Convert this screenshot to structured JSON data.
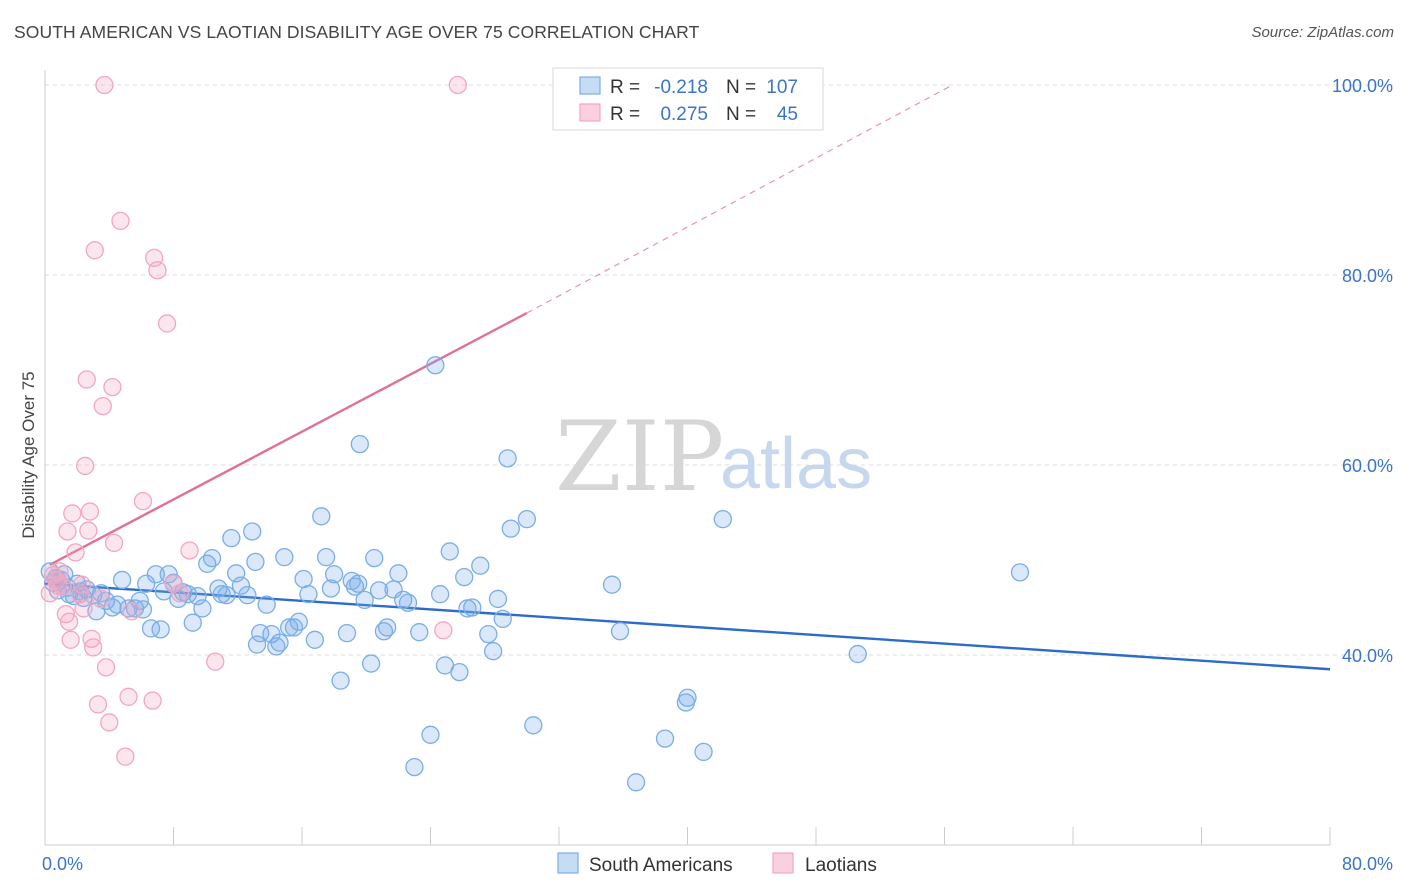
{
  "title": "SOUTH AMERICAN VS LAOTIAN DISABILITY AGE OVER 75 CORRELATION CHART",
  "source": "Source: ZipAtlas.com",
  "watermark": {
    "zip": "ZIP",
    "atlas": "atlas"
  },
  "chart_data": {
    "type": "scatter",
    "xlabel": "",
    "ylabel": "Disability Age Over 75",
    "xlim": [
      0,
      80
    ],
    "ylim": [
      20,
      101
    ],
    "x_tick_labels": [
      "0.0%",
      "80.0%"
    ],
    "y_ticks": [
      40,
      60,
      80,
      100
    ],
    "y_tick_labels": [
      "40.0%",
      "60.0%",
      "80.0%",
      "100.0%"
    ],
    "grid": true,
    "legend_position": "top-center",
    "stats": [
      {
        "r_label": "R =",
        "r": "-0.218",
        "n_label": "N =",
        "n": "107"
      },
      {
        "r_label": "R =",
        "r": "0.275",
        "n_label": "N =",
        "n": "45"
      }
    ],
    "series": [
      {
        "name": "South Americans",
        "color": "#7aaee8",
        "line_color": "#2b6cc9",
        "trend": {
          "x": [
            0,
            80
          ],
          "y": [
            47.5,
            38.5
          ],
          "dashed_to": null
        },
        "points": [
          [
            0.3,
            48.8
          ],
          [
            0.5,
            47.6
          ],
          [
            0.7,
            48.1
          ],
          [
            0.8,
            46.8
          ],
          [
            1.0,
            47.9
          ],
          [
            1.2,
            48.5
          ],
          [
            1.4,
            47.1
          ],
          [
            1.5,
            46.4
          ],
          [
            1.8,
            46.2
          ],
          [
            2.0,
            47.5
          ],
          [
            2.2,
            46.7
          ],
          [
            2.4,
            46.0
          ],
          [
            2.6,
            46.9
          ],
          [
            3.0,
            46.3
          ],
          [
            3.2,
            44.6
          ],
          [
            3.5,
            46.5
          ],
          [
            3.8,
            45.7
          ],
          [
            4.2,
            45.0
          ],
          [
            4.5,
            45.3
          ],
          [
            4.8,
            47.9
          ],
          [
            5.2,
            44.9
          ],
          [
            5.6,
            44.9
          ],
          [
            5.9,
            45.7
          ],
          [
            6.1,
            44.8
          ],
          [
            6.3,
            47.5
          ],
          [
            6.6,
            42.8
          ],
          [
            6.9,
            48.5
          ],
          [
            7.2,
            42.7
          ],
          [
            7.4,
            46.7
          ],
          [
            7.7,
            48.5
          ],
          [
            8.0,
            47.6
          ],
          [
            8.3,
            45.9
          ],
          [
            8.6,
            46.6
          ],
          [
            8.9,
            46.4
          ],
          [
            9.2,
            43.4
          ],
          [
            9.5,
            46.2
          ],
          [
            9.8,
            44.9
          ],
          [
            10.1,
            49.6
          ],
          [
            10.4,
            50.2
          ],
          [
            10.8,
            47.0
          ],
          [
            11.0,
            46.4
          ],
          [
            11.3,
            46.3
          ],
          [
            11.6,
            52.3
          ],
          [
            11.9,
            48.6
          ],
          [
            12.2,
            47.3
          ],
          [
            12.6,
            46.3
          ],
          [
            12.9,
            53.0
          ],
          [
            13.1,
            49.8
          ],
          [
            13.4,
            42.3
          ],
          [
            13.8,
            45.3
          ],
          [
            14.1,
            42.2
          ],
          [
            14.4,
            40.9
          ],
          [
            14.6,
            41.3
          ],
          [
            14.9,
            50.3
          ],
          [
            15.2,
            42.9
          ],
          [
            15.5,
            42.9
          ],
          [
            15.8,
            43.5
          ],
          [
            16.1,
            48.0
          ],
          [
            16.4,
            46.4
          ],
          [
            16.8,
            41.6
          ],
          [
            17.2,
            54.6
          ],
          [
            17.5,
            50.3
          ],
          [
            17.8,
            47.0
          ],
          [
            18.0,
            48.5
          ],
          [
            18.4,
            37.3
          ],
          [
            18.8,
            42.3
          ],
          [
            19.1,
            47.8
          ],
          [
            19.3,
            47.2
          ],
          [
            19.6,
            62.2
          ],
          [
            19.9,
            45.8
          ],
          [
            20.3,
            39.1
          ],
          [
            20.5,
            50.2
          ],
          [
            20.8,
            46.8
          ],
          [
            21.1,
            42.5
          ],
          [
            21.3,
            42.9
          ],
          [
            21.7,
            46.9
          ],
          [
            22.0,
            48.6
          ],
          [
            22.3,
            45.8
          ],
          [
            22.6,
            45.5
          ],
          [
            23.0,
            28.2
          ],
          [
            23.3,
            42.4
          ],
          [
            24.0,
            31.6
          ],
          [
            24.3,
            70.5
          ],
          [
            24.6,
            46.4
          ],
          [
            24.9,
            38.9
          ],
          [
            25.2,
            50.9
          ],
          [
            25.8,
            38.2
          ],
          [
            26.1,
            48.2
          ],
          [
            26.3,
            44.9
          ],
          [
            26.6,
            45.0
          ],
          [
            27.1,
            49.4
          ],
          [
            27.6,
            42.2
          ],
          [
            27.9,
            40.4
          ],
          [
            28.2,
            45.9
          ],
          [
            28.5,
            43.8
          ],
          [
            28.8,
            60.7
          ],
          [
            29.0,
            53.3
          ],
          [
            30.0,
            54.3
          ],
          [
            30.4,
            32.6
          ],
          [
            35.3,
            47.4
          ],
          [
            35.8,
            42.5
          ],
          [
            36.8,
            26.6
          ],
          [
            38.6,
            31.2
          ],
          [
            39.9,
            35.0
          ],
          [
            40.0,
            35.5
          ],
          [
            41.0,
            29.8
          ],
          [
            42.2,
            54.3
          ],
          [
            60.7,
            48.7
          ],
          [
            50.6,
            40.1
          ],
          [
            19.5,
            47.5
          ],
          [
            13.2,
            41.1
          ]
        ]
      },
      {
        "name": "Laotians",
        "color": "#f4a6c0",
        "line_color": "#e0709a",
        "trend": {
          "x": [
            0.3,
            30
          ],
          "y": [
            49.5,
            76.0
          ],
          "dashed_to": [
            56.5,
            100.0
          ]
        },
        "points": [
          [
            0.3,
            46.5
          ],
          [
            0.5,
            48.4
          ],
          [
            0.7,
            47.9
          ],
          [
            0.8,
            47.3
          ],
          [
            0.9,
            48.8
          ],
          [
            1.1,
            47.2
          ],
          [
            1.3,
            44.3
          ],
          [
            1.4,
            53.0
          ],
          [
            1.5,
            43.5
          ],
          [
            1.6,
            41.6
          ],
          [
            1.7,
            54.9
          ],
          [
            1.9,
            50.8
          ],
          [
            2.2,
            46.4
          ],
          [
            2.3,
            47.4
          ],
          [
            2.4,
            44.9
          ],
          [
            2.5,
            59.9
          ],
          [
            2.6,
            69.0
          ],
          [
            2.7,
            53.1
          ],
          [
            2.8,
            55.1
          ],
          [
            2.9,
            41.7
          ],
          [
            3.0,
            40.8
          ],
          [
            3.1,
            82.6
          ],
          [
            3.3,
            34.8
          ],
          [
            3.5,
            45.9
          ],
          [
            3.6,
            66.2
          ],
          [
            3.8,
            38.7
          ],
          [
            4.0,
            32.9
          ],
          [
            4.2,
            68.2
          ],
          [
            4.3,
            51.8
          ],
          [
            4.7,
            85.7
          ],
          [
            5.0,
            29.3
          ],
          [
            5.2,
            35.6
          ],
          [
            5.4,
            44.6
          ],
          [
            6.1,
            56.2
          ],
          [
            6.7,
            35.2
          ],
          [
            6.8,
            81.8
          ],
          [
            7.0,
            80.5
          ],
          [
            7.6,
            74.9
          ],
          [
            8.0,
            47.5
          ],
          [
            8.4,
            46.5
          ],
          [
            9.0,
            51.0
          ],
          [
            10.6,
            39.3
          ],
          [
            3.7,
            100.0
          ],
          [
            25.7,
            100.0
          ],
          [
            24.8,
            42.6
          ]
        ]
      }
    ]
  },
  "legend": {
    "bottom": [
      "South Americans",
      "Laotians"
    ]
  }
}
